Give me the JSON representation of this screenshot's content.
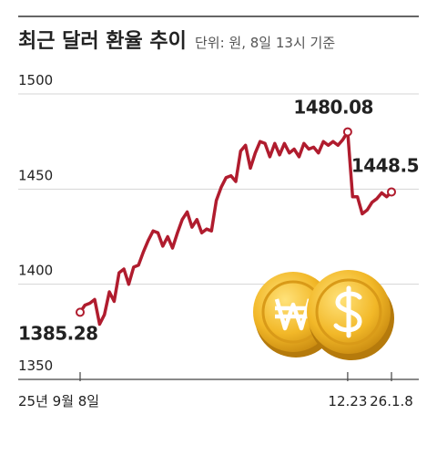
{
  "chart_data": {
    "type": "line",
    "title": "최근 달러 환율 추이",
    "subtitle": "단위: 원, 8일 13시 기준",
    "categories": [
      "25년 9월 8일",
      null,
      null,
      null,
      null,
      null,
      null,
      null,
      null,
      null,
      null,
      null,
      null,
      null,
      null,
      null,
      null,
      null,
      null,
      null,
      null,
      null,
      null,
      null,
      null,
      null,
      null,
      null,
      null,
      null,
      null,
      null,
      null,
      null,
      null,
      null,
      null,
      null,
      null,
      null,
      null,
      null,
      null,
      null,
      null,
      null,
      null,
      null,
      null,
      null,
      null,
      null,
      null,
      null,
      null,
      "12.23",
      null,
      null,
      null,
      null,
      null,
      null,
      null,
      null,
      "26.1.8"
    ],
    "values": [
      1385.28,
      1389,
      1390,
      1392,
      1379,
      1384,
      1396,
      1391,
      1406,
      1408,
      1400,
      1409,
      1410,
      1417,
      1423,
      1428,
      1427,
      1420,
      1425,
      1419,
      1427,
      1434,
      1438,
      1430,
      1434,
      1427,
      1429,
      1428,
      1444,
      1451,
      1456,
      1457,
      1454,
      1470,
      1473,
      1461,
      1469,
      1475,
      1474,
      1467,
      1474,
      1468,
      1474,
      1469,
      1471,
      1467,
      1474,
      1471,
      1472,
      1469,
      1475,
      1473,
      1475,
      1473,
      1476,
      1480.08,
      1446,
      1446,
      1437,
      1439,
      1443,
      1445,
      1448,
      1446,
      1448.5
    ],
    "color": "#b01c2e",
    "ylim": [
      1350,
      1500
    ],
    "yticks": [
      1350,
      1400,
      1450,
      1500
    ],
    "grid": true
  }
}
